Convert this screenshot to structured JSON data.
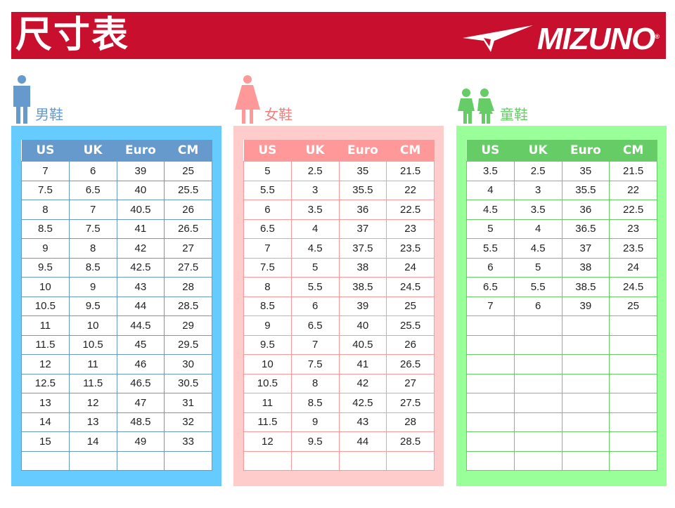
{
  "header": {
    "title": "尺寸表",
    "brand": "MIZUNO",
    "registered": "®"
  },
  "columns": [
    "US",
    "UK",
    "Euro",
    "CM"
  ],
  "sections": [
    {
      "label": "男鞋",
      "icon": "man-icon",
      "colors": {
        "panel": "#66CCFF",
        "header": "#6699CC",
        "label": "#6699CC"
      },
      "rows": [
        [
          "7",
          "6",
          "39",
          "25"
        ],
        [
          "7.5",
          "6.5",
          "40",
          "25.5"
        ],
        [
          "8",
          "7",
          "40.5",
          "26"
        ],
        [
          "8.5",
          "7.5",
          "41",
          "26.5"
        ],
        [
          "9",
          "8",
          "42",
          "27"
        ],
        [
          "9.5",
          "8.5",
          "42.5",
          "27.5"
        ],
        [
          "10",
          "9",
          "43",
          "28"
        ],
        [
          "10.5",
          "9.5",
          "44",
          "28.5"
        ],
        [
          "11",
          "10",
          "44.5",
          "29"
        ],
        [
          "11.5",
          "10.5",
          "45",
          "29.5"
        ],
        [
          "12",
          "11",
          "46",
          "30"
        ],
        [
          "12.5",
          "11.5",
          "46.5",
          "30.5"
        ],
        [
          "13",
          "12",
          "47",
          "31"
        ],
        [
          "14",
          "13",
          "48.5",
          "32"
        ],
        [
          "15",
          "14",
          "49",
          "33"
        ],
        [
          "",
          "",
          "",
          ""
        ]
      ]
    },
    {
      "label": "女鞋",
      "icon": "woman-icon",
      "colors": {
        "panel": "#FFCCCC",
        "header": "#FF9999",
        "label": "#F08080"
      },
      "rows": [
        [
          "5",
          "2.5",
          "35",
          "21.5"
        ],
        [
          "5.5",
          "3",
          "35.5",
          "22"
        ],
        [
          "6",
          "3.5",
          "36",
          "22.5"
        ],
        [
          "6.5",
          "4",
          "37",
          "23"
        ],
        [
          "7",
          "4.5",
          "37.5",
          "23.5"
        ],
        [
          "7.5",
          "5",
          "38",
          "24"
        ],
        [
          "8",
          "5.5",
          "38.5",
          "24.5"
        ],
        [
          "8.5",
          "6",
          "39",
          "25"
        ],
        [
          "9",
          "6.5",
          "40",
          "25.5"
        ],
        [
          "9.5",
          "7",
          "40.5",
          "26"
        ],
        [
          "10",
          "7.5",
          "41",
          "26.5"
        ],
        [
          "10.5",
          "8",
          "42",
          "27"
        ],
        [
          "11",
          "8.5",
          "42.5",
          "27.5"
        ],
        [
          "11.5",
          "9",
          "43",
          "28"
        ],
        [
          "12",
          "9.5",
          "44",
          "28.5"
        ],
        [
          "",
          "",
          "",
          ""
        ]
      ]
    },
    {
      "label": "童鞋",
      "icon": "children-icon",
      "colors": {
        "panel": "#99FF99",
        "header": "#66CC66",
        "label": "#66CC66"
      },
      "rows": [
        [
          "3.5",
          "2.5",
          "35",
          "21.5"
        ],
        [
          "4",
          "3",
          "35.5",
          "22"
        ],
        [
          "4.5",
          "3.5",
          "36",
          "22.5"
        ],
        [
          "5",
          "4",
          "36.5",
          "23"
        ],
        [
          "5.5",
          "4.5",
          "37",
          "23.5"
        ],
        [
          "6",
          "5",
          "38",
          "24"
        ],
        [
          "6.5",
          "5.5",
          "38.5",
          "24.5"
        ],
        [
          "7",
          "6",
          "39",
          "25"
        ],
        [
          "",
          "",
          "",
          ""
        ],
        [
          "",
          "",
          "",
          ""
        ],
        [
          "",
          "",
          "",
          ""
        ],
        [
          "",
          "",
          "",
          ""
        ],
        [
          "",
          "",
          "",
          ""
        ],
        [
          "",
          "",
          "",
          ""
        ],
        [
          "",
          "",
          "",
          ""
        ],
        [
          "",
          "",
          "",
          ""
        ]
      ]
    }
  ]
}
